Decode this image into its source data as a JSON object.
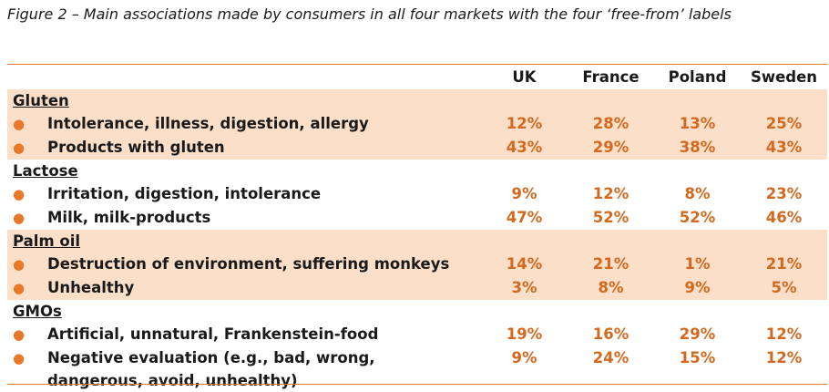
{
  "caption": "Figure 2 – Main associations made by consumers in all four markets with the four ‘free-from’ labels",
  "columns": [
    "UK",
    "France",
    "Poland",
    "Sweden"
  ],
  "groups": [
    {
      "name": "Gluten",
      "items": [
        {
          "label": "Intolerance, illness, digestion, allergy",
          "values": [
            "12%",
            "28%",
            "13%",
            "25%"
          ]
        },
        {
          "label": "Products with gluten",
          "values": [
            "43%",
            "29%",
            "38%",
            "43%"
          ]
        }
      ]
    },
    {
      "name": "Lactose",
      "items": [
        {
          "label": "Irritation, digestion, intolerance",
          "values": [
            "9%",
            "12%",
            "8%",
            "23%"
          ]
        },
        {
          "label": "Milk, milk-products",
          "values": [
            "47%",
            "52%",
            "52%",
            "46%"
          ]
        }
      ]
    },
    {
      "name": "Palm oil",
      "items": [
        {
          "label": "Destruction of environment, suffering monkeys",
          "values": [
            "14%",
            "21%",
            "1%",
            "21%"
          ]
        },
        {
          "label": "Unhealthy",
          "values": [
            "3%",
            "8%",
            "9%",
            "5%"
          ]
        }
      ]
    },
    {
      "name": "GMOs",
      "items": [
        {
          "label": "Artificial, unnatural, Frankenstein-food",
          "values": [
            "19%",
            "16%",
            "29%",
            "12%"
          ]
        },
        {
          "label": "Negative evaluation (e.g., bad, wrong, dangerous, avoid, unhealthy)",
          "values": [
            "9%",
            "24%",
            "15%",
            "12%"
          ]
        }
      ]
    }
  ],
  "colors": {
    "accent": "#e8782a",
    "value_text": "#d2691e",
    "shade": "#fbdfc8"
  }
}
